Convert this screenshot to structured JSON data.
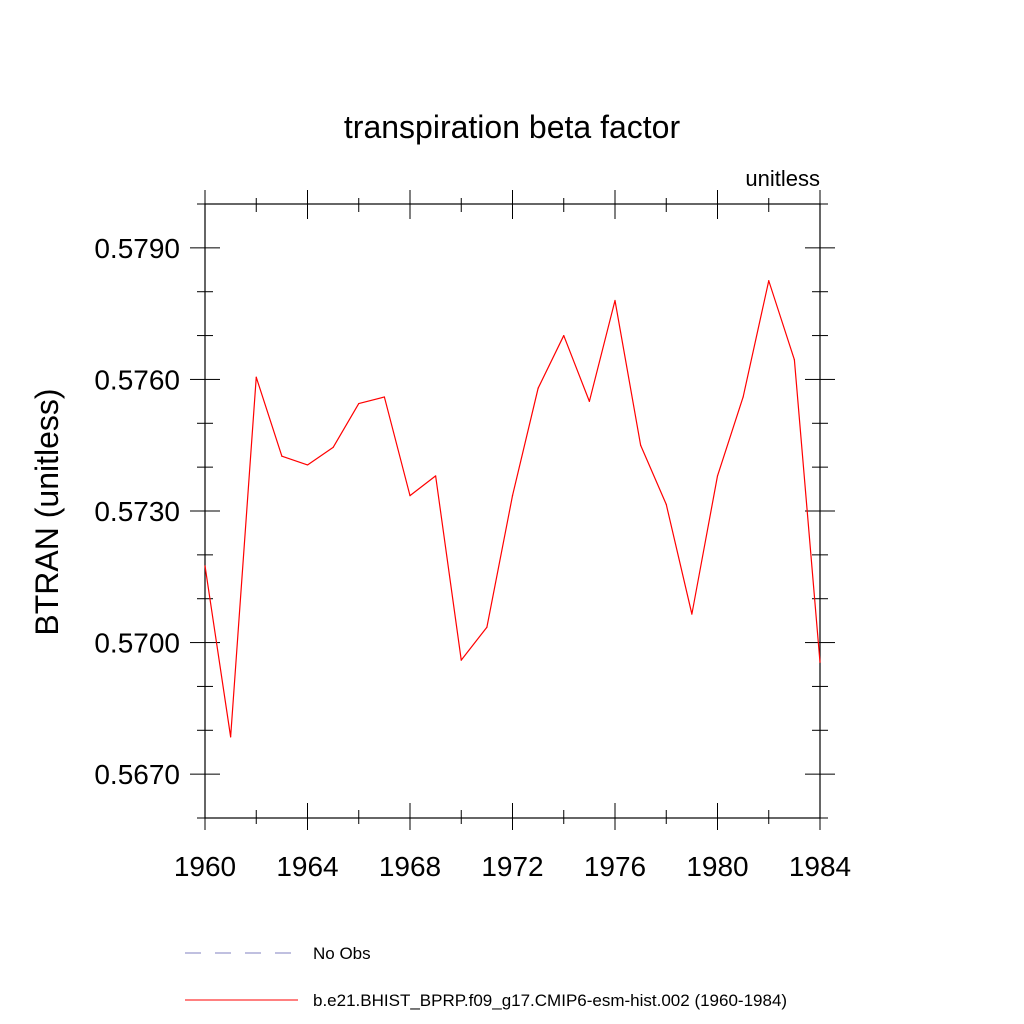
{
  "chart_data": {
    "type": "line",
    "title": "transpiration beta factor",
    "units_label": "unitless",
    "ylabel": "BTRAN  (unitless)",
    "xlabel": "",
    "xlim": [
      1960,
      1984
    ],
    "ylim": [
      0.566,
      0.58
    ],
    "x_ticks": [
      "1960",
      "1964",
      "1968",
      "1972",
      "1976",
      "1980",
      "1984"
    ],
    "y_ticks": [
      "0.5670",
      "0.5700",
      "0.5730",
      "0.5760",
      "0.5790"
    ],
    "x": [
      1960,
      1961,
      1962,
      1963,
      1964,
      1965,
      1966,
      1967,
      1968,
      1969,
      1970,
      1971,
      1972,
      1973,
      1974,
      1975,
      1976,
      1977,
      1978,
      1979,
      1980,
      1981,
      1982,
      1983,
      1984
    ],
    "series": [
      {
        "name": "b.e21.BHIST_BPRP.f09_g17.CMIP6-esm-hist.002 (1960-1984)",
        "color": "#ff0000",
        "values": [
          0.57175,
          0.56785,
          0.57605,
          0.57425,
          0.57405,
          0.57445,
          0.57545,
          0.5756,
          0.57335,
          0.5738,
          0.5696,
          0.57035,
          0.57335,
          0.5758,
          0.577,
          0.5755,
          0.5778,
          0.5745,
          0.57315,
          0.57065,
          0.5738,
          0.5756,
          0.57825,
          0.57645,
          0.56955
        ]
      }
    ],
    "legend": {
      "placement": "bottom",
      "entries": [
        {
          "label": "No Obs",
          "style": "dashed",
          "color": "#8080c0"
        },
        {
          "label": "b.e21.BHIST_BPRP.f09_g17.CMIP6-esm-hist.002 (1960-1984)",
          "style": "solid",
          "color": "#ff0000"
        }
      ]
    }
  }
}
